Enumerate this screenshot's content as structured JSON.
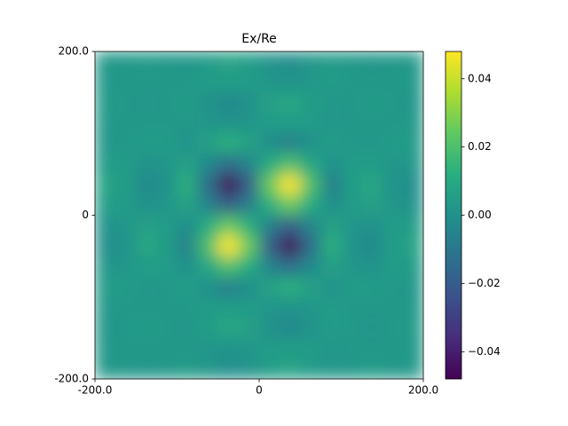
{
  "chart_data": {
    "type": "heatmap",
    "title": "Ex/Re",
    "colormap": "viridis",
    "xlim": [
      -200,
      200
    ],
    "ylim": [
      -200,
      200
    ],
    "xticks": [
      {
        "value": -200,
        "label": "-200.0"
      },
      0,
      {
        "value": 200,
        "label": "200.0"
      }
    ],
    "yticks": [
      {
        "value": -200,
        "label": "-200.0"
      },
      0,
      {
        "value": 200,
        "label": "200.0"
      }
    ],
    "clim": [
      -0.048,
      0.048
    ],
    "cticks": [
      {
        "value": -0.04,
        "label": "−0.04"
      },
      {
        "value": -0.02,
        "label": "−0.02"
      },
      {
        "value": 0,
        "label": "0.00"
      },
      0.02,
      0.04
    ],
    "z": [
      [
        0.003,
        0.003,
        0.004,
        0.003,
        0.002,
        0.004,
        0.007,
        0.005,
        0.001,
        -0.001,
        0.002,
        0.004,
        0.003,
        0.002,
        0.003,
        0.003
      ],
      [
        0.003,
        0.003,
        0.003,
        0.003,
        0.003,
        0.004,
        0.005,
        0.004,
        0.002,
        0.001,
        0.002,
        0.004,
        0.003,
        0.003,
        0.003,
        0.003
      ],
      [
        0.004,
        0.003,
        0.002,
        0.003,
        0.004,
        0.001,
        -0.003,
        0,
        0.006,
        0.009,
        0.005,
        0.002,
        0.003,
        0.004,
        0.003,
        0.002
      ],
      [
        0.003,
        0.003,
        0.003,
        0.003,
        0.003,
        0.002,
        0.001,
        0.002,
        0.004,
        0.005,
        0.004,
        0.002,
        0.003,
        0.003,
        0.003,
        0.003
      ],
      [
        0.002,
        0.003,
        0.004,
        0.004,
        0.001,
        0.006,
        0.013,
        0.007,
        -0.001,
        -0.007,
        0,
        0.005,
        0.003,
        0.002,
        0.004,
        0.004
      ],
      [
        0.004,
        0.004,
        0.001,
        0.002,
        0.006,
        -0.003,
        -0.014,
        -0.005,
        0.011,
        0.02,
        0.009,
        0,
        0.004,
        0.005,
        0.002,
        0.002
      ],
      [
        0.007,
        0.005,
        -0.003,
        0.001,
        0.013,
        -0.014,
        -0.048,
        -0.019,
        0.025,
        0.048,
        0.02,
        -0.007,
        0.005,
        0.009,
        0.001,
        -0.001
      ],
      [
        0.005,
        0.004,
        0,
        0.002,
        0.007,
        -0.005,
        -0.019,
        -0.007,
        0.013,
        0.025,
        0.011,
        -0.001,
        0.004,
        0.006,
        0.002,
        0.001
      ],
      [
        0.001,
        0.002,
        0.006,
        0.004,
        -0.001,
        0.011,
        0.025,
        0.013,
        -0.007,
        -0.019,
        -0.005,
        0.007,
        0.002,
        0,
        0.004,
        0.005
      ],
      [
        -0.001,
        0.001,
        0.009,
        0.005,
        -0.007,
        0.02,
        0.048,
        0.025,
        -0.019,
        -0.048,
        -0.014,
        0.013,
        0.001,
        -0.003,
        0.005,
        0.007
      ],
      [
        0.002,
        0.002,
        0.005,
        0.004,
        0,
        0.009,
        0.02,
        0.011,
        -0.005,
        -0.014,
        -0.003,
        0.006,
        0.002,
        0.001,
        0.004,
        0.004
      ],
      [
        0.004,
        0.004,
        0.002,
        0.003,
        0.005,
        0,
        -0.007,
        -0.001,
        0.007,
        0.013,
        0.006,
        0.001,
        0.004,
        0.004,
        0.003,
        0.002
      ],
      [
        0.003,
        0.003,
        0.003,
        0.003,
        0.003,
        0.004,
        0.005,
        0.004,
        0.002,
        0.001,
        0.002,
        0.004,
        0.003,
        0.003,
        0.003,
        0.003
      ],
      [
        0.002,
        0.003,
        0.004,
        0.003,
        0.002,
        0.005,
        0.009,
        0.006,
        0,
        -0.003,
        0.001,
        0.004,
        0.003,
        0.002,
        0.003,
        0.004
      ],
      [
        0.003,
        0.003,
        0.003,
        0.003,
        0.003,
        0.002,
        0.001,
        0.002,
        0.004,
        0.005,
        0.004,
        0.002,
        0.003,
        0.003,
        0.003,
        0.003
      ],
      [
        0.003,
        0.003,
        0.002,
        0.003,
        0.004,
        0.002,
        -0.001,
        0.001,
        0.005,
        0.007,
        0.004,
        0.002,
        0.003,
        0.004,
        0.003,
        0.003
      ]
    ]
  }
}
